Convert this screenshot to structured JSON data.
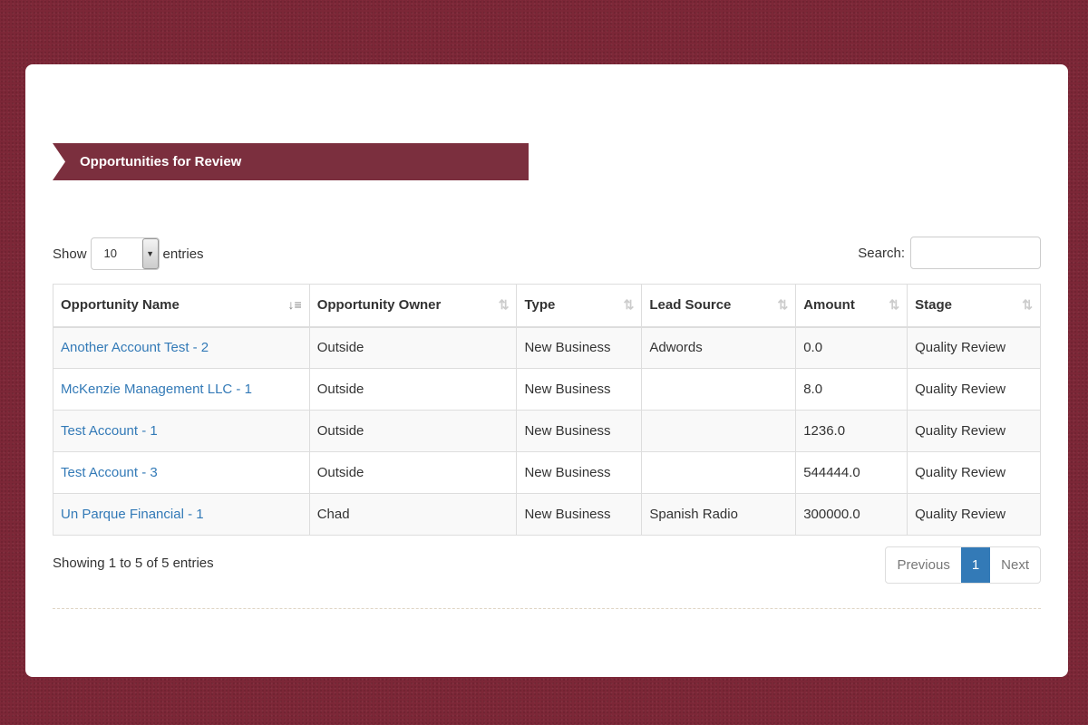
{
  "title": "Opportunities for Review",
  "length": {
    "show": "Show",
    "value": "10",
    "entries": "entries"
  },
  "search": {
    "label": "Search:",
    "value": ""
  },
  "columns": [
    "Opportunity Name",
    "Opportunity Owner",
    "Type",
    "Lead Source",
    "Amount",
    "Stage"
  ],
  "rows": [
    [
      "Another Account Test - 2",
      "Outside",
      "New Business",
      "Adwords",
      "0.0",
      "Quality Review"
    ],
    [
      "McKenzie Management LLC - 1",
      "Outside",
      "New Business",
      "",
      "8.0",
      "Quality Review"
    ],
    [
      "Test Account - 1",
      "Outside",
      "New Business",
      "",
      "1236.0",
      "Quality Review"
    ],
    [
      "Test Account - 3",
      "Outside",
      "New Business",
      "",
      "544444.0",
      "Quality Review"
    ],
    [
      "Un Parque Financial - 1",
      "Chad",
      "New Business",
      "Spanish Radio",
      "300000.0",
      "Quality Review"
    ]
  ],
  "info": "Showing 1 to 5 of 5 entries",
  "pagination": {
    "previous": "Previous",
    "current": "1",
    "next": "Next"
  },
  "colors": {
    "banner": "#7b2f3e",
    "accent": "#337ab7"
  }
}
